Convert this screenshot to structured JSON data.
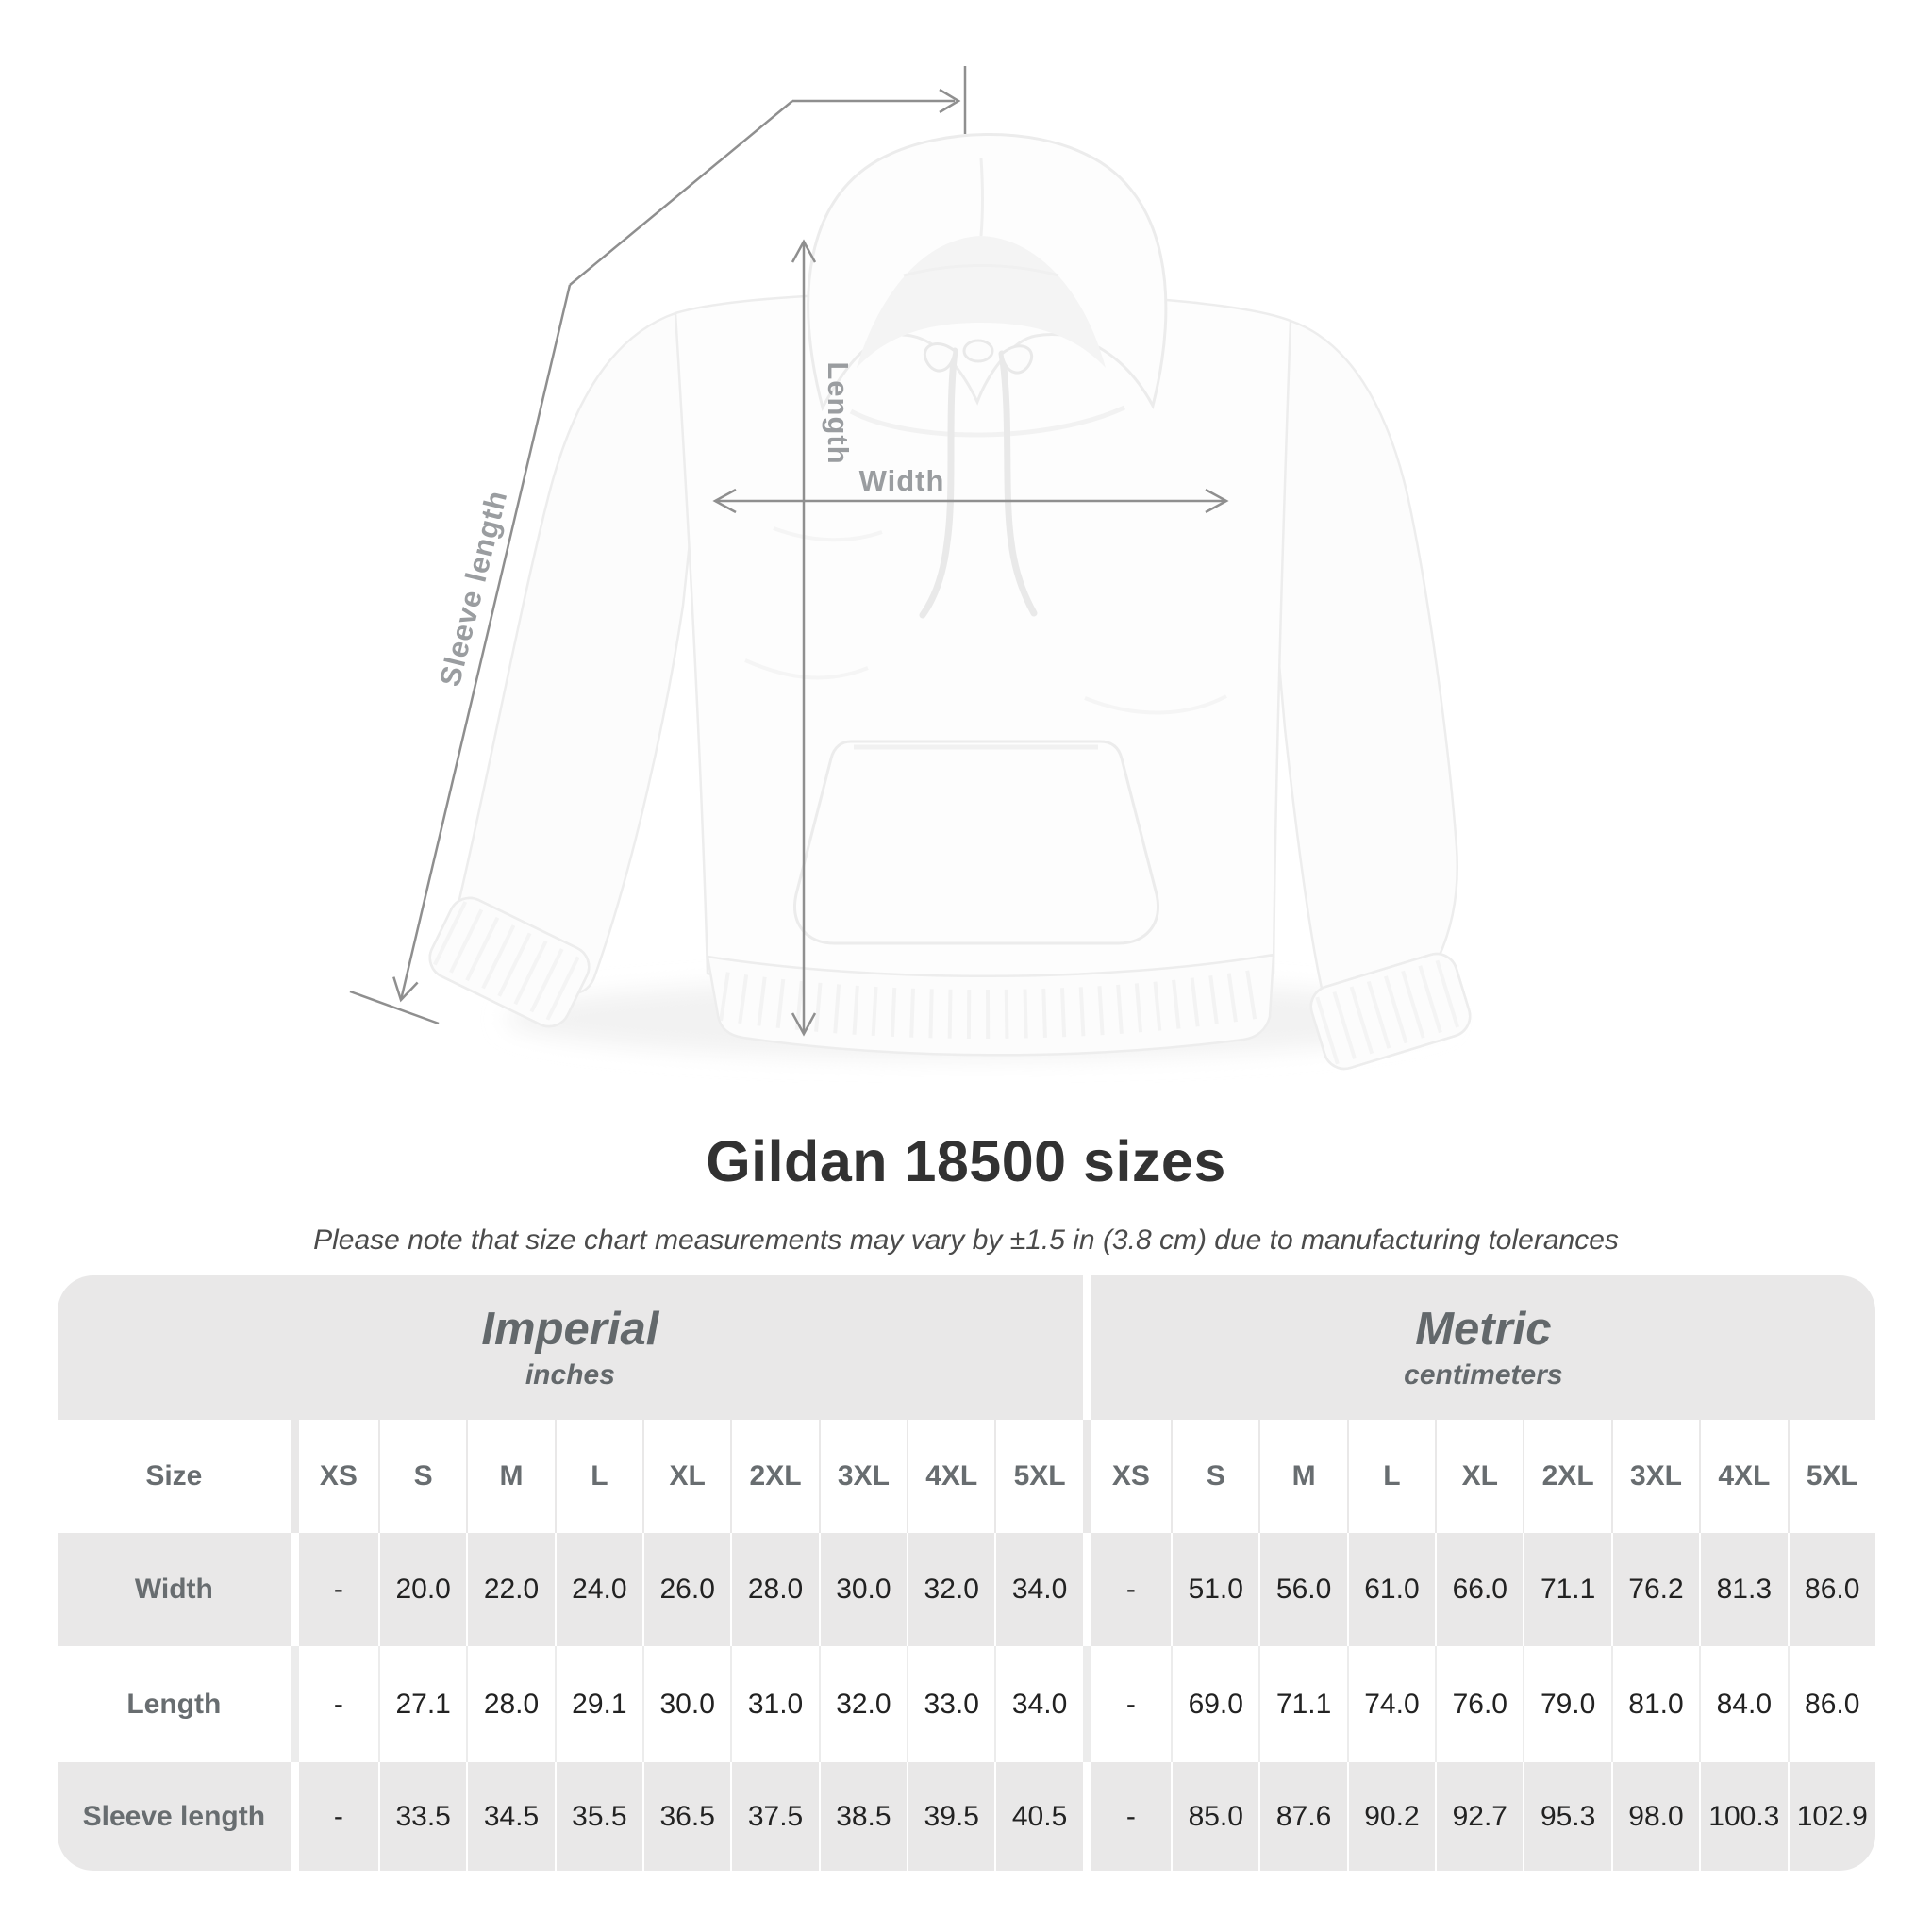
{
  "diagram": {
    "sleeve_label": "Sleeve length",
    "length_label": "Length",
    "width_label": "Width"
  },
  "title": "Gildan 18500 sizes",
  "subtitle": "Please note that size chart measurements may vary by ±1.5 in (3.8 cm) due to manufacturing tolerances",
  "table": {
    "size_header": "Size",
    "sections": [
      {
        "label": "Imperial",
        "sublabel": "inches"
      },
      {
        "label": "Metric",
        "sublabel": "centimeters"
      }
    ],
    "sizes": [
      "XS",
      "S",
      "M",
      "L",
      "XL",
      "2XL",
      "3XL",
      "4XL",
      "5XL"
    ],
    "rows": [
      {
        "label": "Width",
        "imperial": [
          "-",
          "20.0",
          "22.0",
          "24.0",
          "26.0",
          "28.0",
          "30.0",
          "32.0",
          "34.0"
        ],
        "metric": [
          "-",
          "51.0",
          "56.0",
          "61.0",
          "66.0",
          "71.1",
          "76.2",
          "81.3",
          "86.0"
        ]
      },
      {
        "label": "Length",
        "imperial": [
          "-",
          "27.1",
          "28.0",
          "29.1",
          "30.0",
          "31.0",
          "32.0",
          "33.0",
          "34.0"
        ],
        "metric": [
          "-",
          "69.0",
          "71.1",
          "74.0",
          "76.0",
          "79.0",
          "81.0",
          "84.0",
          "86.0"
        ]
      },
      {
        "label": "Sleeve length",
        "imperial": [
          "-",
          "33.5",
          "34.5",
          "35.5",
          "36.5",
          "37.5",
          "38.5",
          "39.5",
          "40.5"
        ],
        "metric": [
          "-",
          "85.0",
          "87.6",
          "90.2",
          "92.7",
          "95.3",
          "98.0",
          "100.3",
          "102.9"
        ]
      }
    ]
  },
  "colors": {
    "band_gray": "#e9e8e8",
    "row_gray": "#e9e8e8",
    "header_text": "#686d70",
    "data_text": "#222222",
    "title_text": "#323232",
    "subtitle_text": "#4b4b4b",
    "measure_line": "#8f8f8f",
    "measure_label": "#9a9da0"
  }
}
